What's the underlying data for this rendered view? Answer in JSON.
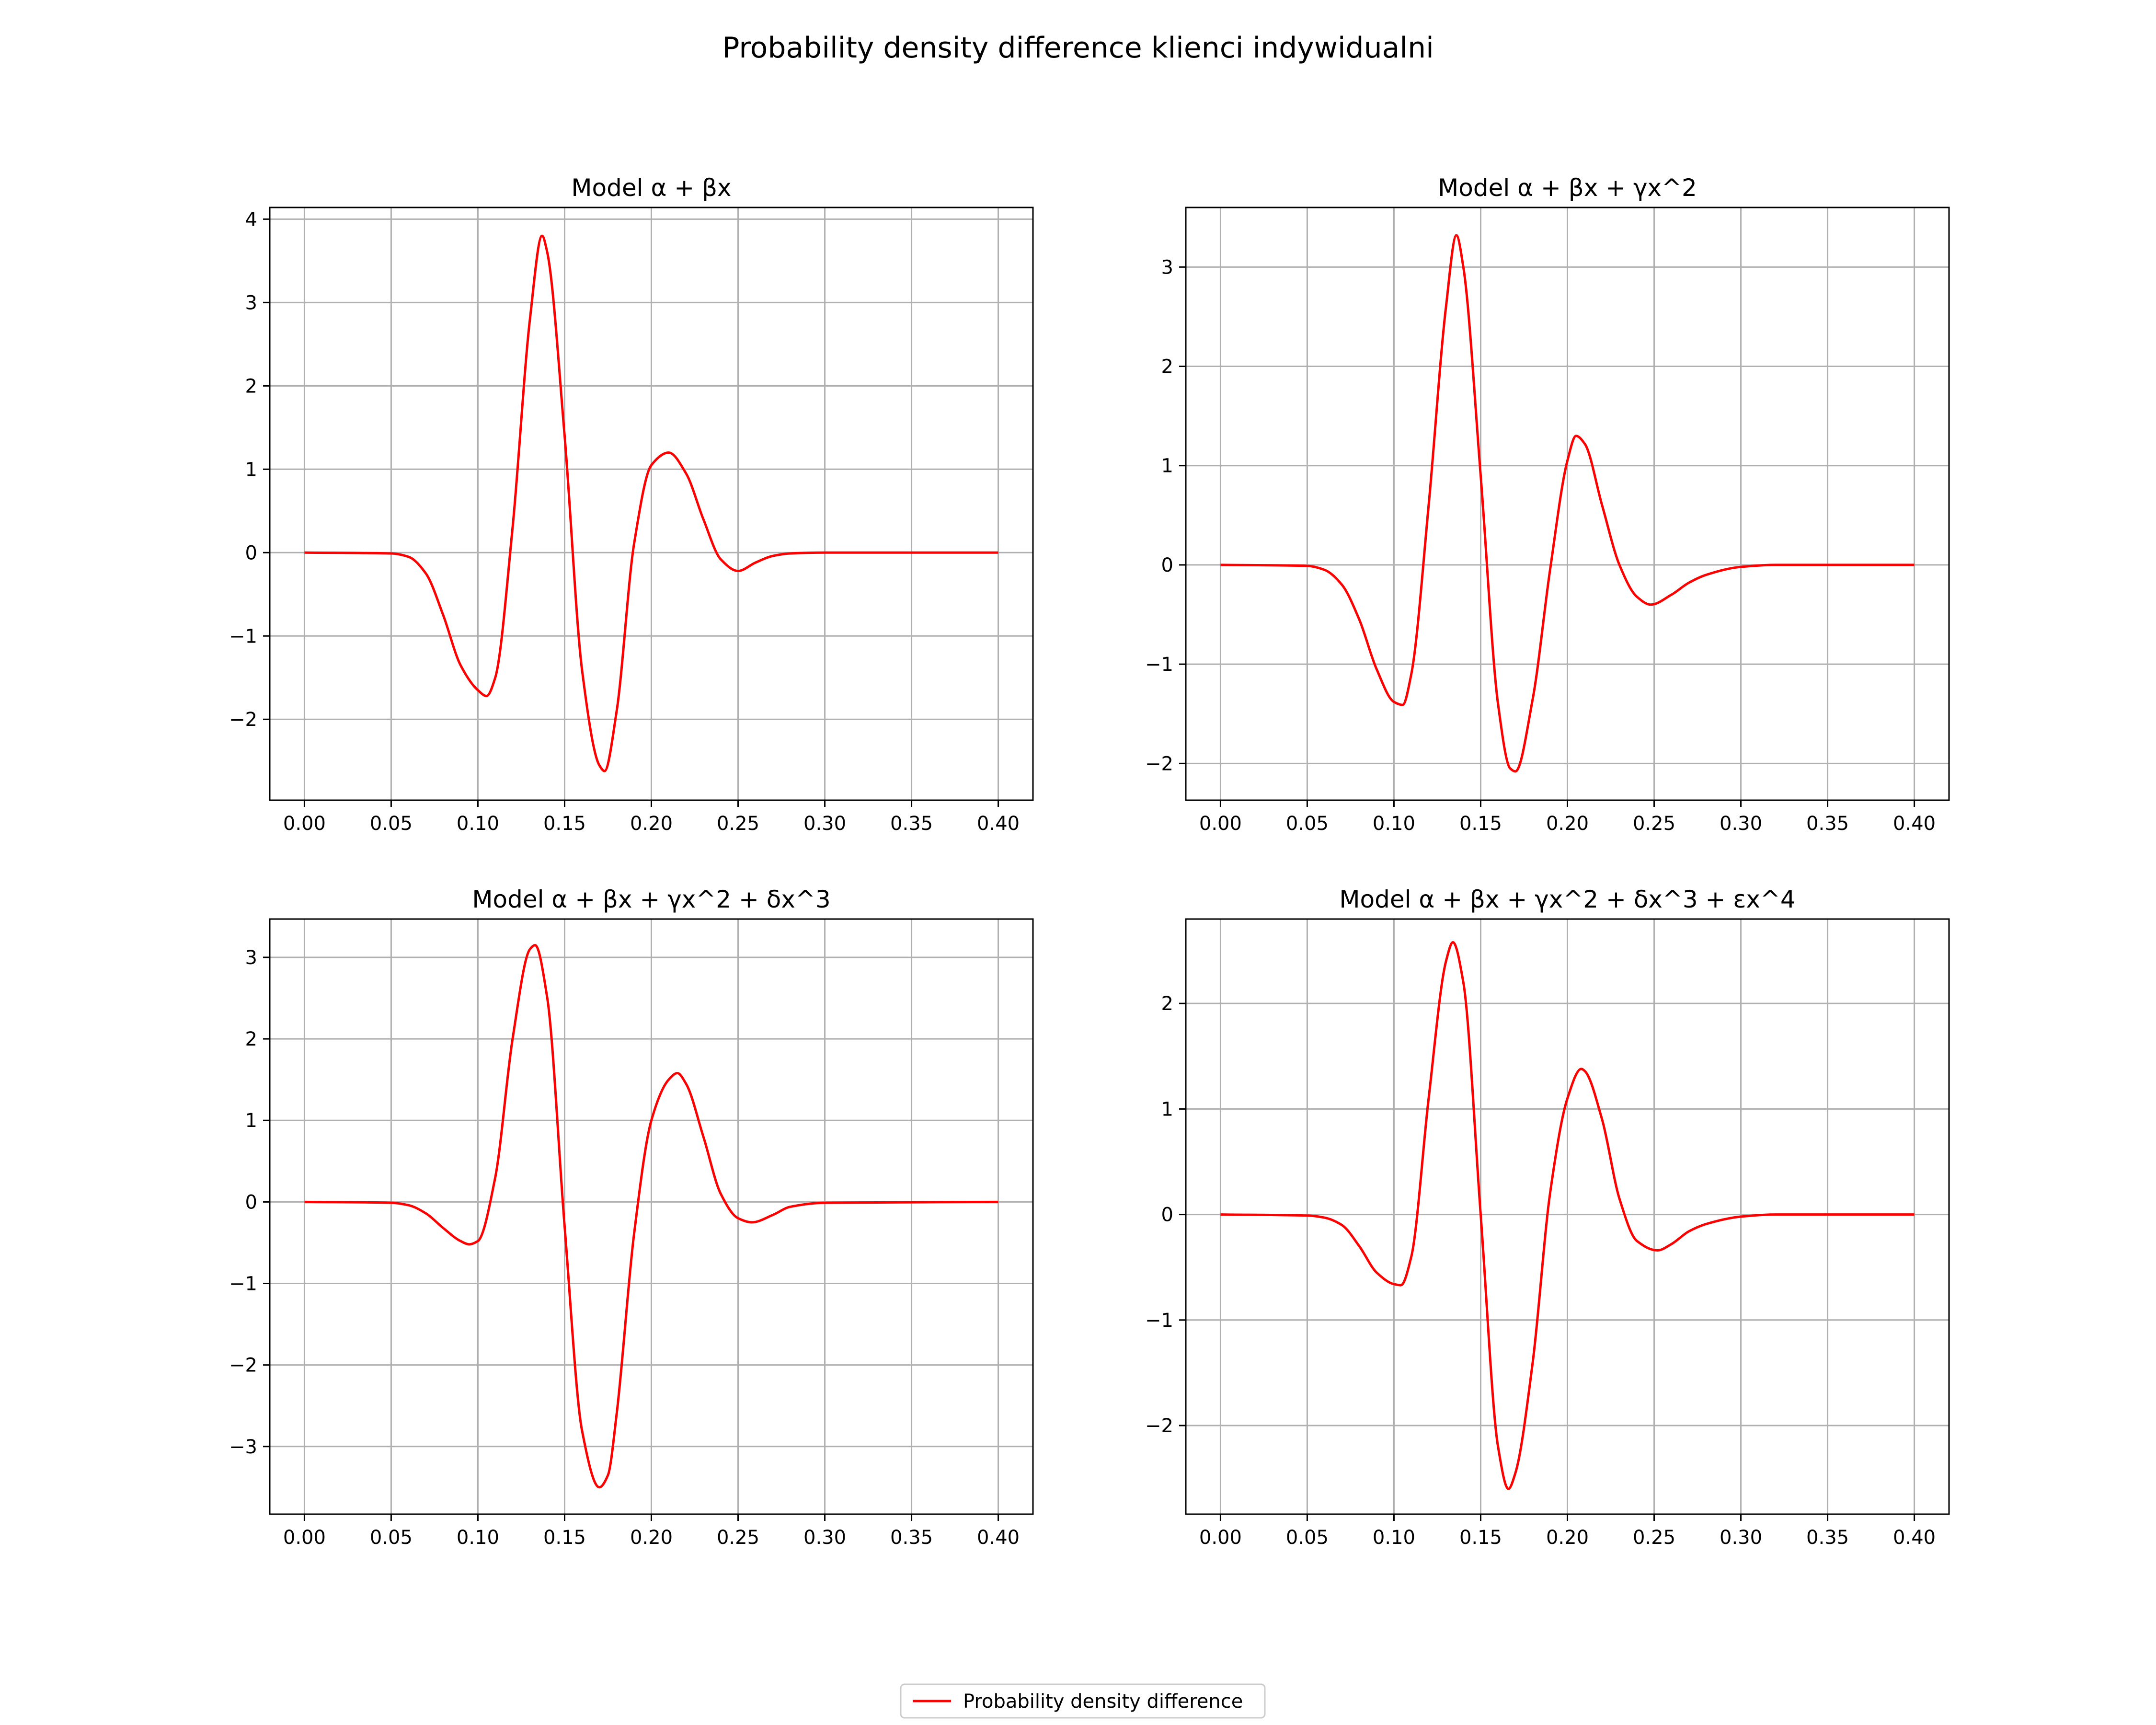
{
  "suptitle": "Probability density difference klienci indywidualni",
  "legend": {
    "label": "Probability density difference",
    "position": "lower center"
  },
  "colors": {
    "line": "#ff0000",
    "grid": "#b0b0b0",
    "axes": "#000000",
    "background": "#ffffff"
  },
  "chart_data": [
    {
      "type": "line",
      "title": "Model α + βx",
      "xlabel": "",
      "ylabel": "",
      "grid": true,
      "xlim": [
        -0.02,
        0.42
      ],
      "ylim": [
        -2.97,
        4.14
      ],
      "xticks": [
        0,
        0.05,
        0.1,
        0.15,
        0.2,
        0.25,
        0.3,
        0.35,
        0.4
      ],
      "xtick_labels": [
        "0.00",
        "0.05",
        "0.10",
        "0.15",
        "0.20",
        "0.25",
        "0.30",
        "0.35",
        "0.40"
      ],
      "yticks": [
        -2,
        -1,
        0,
        1,
        2,
        3,
        4
      ],
      "ytick_labels": [
        "−2",
        "−1",
        "0",
        "1",
        "2",
        "3",
        "4"
      ],
      "series": [
        {
          "name": "Probability density difference",
          "x": [
            0,
            0.05,
            0.06,
            0.07,
            0.08,
            0.09,
            0.1,
            0.105,
            0.11,
            0.12,
            0.13,
            0.137,
            0.14,
            0.15,
            0.16,
            0.17,
            0.173,
            0.18,
            0.19,
            0.2,
            0.21,
            0.22,
            0.23,
            0.24,
            0.25,
            0.26,
            0.27,
            0.28,
            0.3,
            0.4
          ],
          "y": [
            0,
            -0.01,
            -0.05,
            -0.25,
            -0.75,
            -1.35,
            -1.65,
            -1.72,
            -1.5,
            0.3,
            2.8,
            3.8,
            3.6,
            1.4,
            -1.4,
            -2.55,
            -2.62,
            -1.9,
            0.1,
            1.05,
            1.2,
            0.95,
            0.4,
            -0.08,
            -0.22,
            -0.12,
            -0.04,
            -0.01,
            0,
            0
          ]
        }
      ]
    },
    {
      "type": "line",
      "title": "Model α + βx + γx^2",
      "xlabel": "",
      "ylabel": "",
      "grid": true,
      "xlim": [
        -0.02,
        0.42
      ],
      "ylim": [
        -2.37,
        3.6
      ],
      "xticks": [
        0,
        0.05,
        0.1,
        0.15,
        0.2,
        0.25,
        0.3,
        0.35,
        0.4
      ],
      "xtick_labels": [
        "0.00",
        "0.05",
        "0.10",
        "0.15",
        "0.20",
        "0.25",
        "0.30",
        "0.35",
        "0.40"
      ],
      "yticks": [
        -2,
        -1,
        0,
        1,
        2,
        3
      ],
      "ytick_labels": [
        "−2",
        "−1",
        "0",
        "1",
        "2",
        "3"
      ],
      "series": [
        {
          "name": "Probability density difference",
          "x": [
            0,
            0.05,
            0.06,
            0.07,
            0.08,
            0.09,
            0.1,
            0.105,
            0.11,
            0.12,
            0.13,
            0.136,
            0.14,
            0.15,
            0.16,
            0.167,
            0.17,
            0.18,
            0.19,
            0.2,
            0.205,
            0.21,
            0.22,
            0.23,
            0.24,
            0.248,
            0.26,
            0.27,
            0.28,
            0.3,
            0.32,
            0.4
          ],
          "y": [
            0,
            -0.01,
            -0.05,
            -0.2,
            -0.55,
            -1.05,
            -1.38,
            -1.41,
            -1.1,
            0.6,
            2.6,
            3.32,
            3.0,
            0.9,
            -1.4,
            -2.05,
            -2.08,
            -1.35,
            -0.05,
            1.05,
            1.3,
            1.22,
            0.6,
            0.0,
            -0.32,
            -0.4,
            -0.3,
            -0.18,
            -0.1,
            -0.02,
            0,
            0
          ]
        }
      ]
    },
    {
      "type": "line",
      "title": "Model α + βx + γx^2 + δx^3",
      "xlabel": "",
      "ylabel": "",
      "grid": true,
      "xlim": [
        -0.02,
        0.42
      ],
      "ylim": [
        -3.83,
        3.47
      ],
      "xticks": [
        0,
        0.05,
        0.1,
        0.15,
        0.2,
        0.25,
        0.3,
        0.35,
        0.4
      ],
      "xtick_labels": [
        "0.00",
        "0.05",
        "0.10",
        "0.15",
        "0.20",
        "0.25",
        "0.30",
        "0.35",
        "0.40"
      ],
      "yticks": [
        -3,
        -2,
        -1,
        0,
        1,
        2,
        3
      ],
      "ytick_labels": [
        "−3",
        "−2",
        "−1",
        "0",
        "1",
        "2",
        "3"
      ],
      "series": [
        {
          "name": "Probability density difference",
          "x": [
            0,
            0.05,
            0.06,
            0.07,
            0.08,
            0.09,
            0.095,
            0.1,
            0.11,
            0.12,
            0.13,
            0.133,
            0.14,
            0.15,
            0.16,
            0.17,
            0.175,
            0.18,
            0.19,
            0.2,
            0.21,
            0.215,
            0.22,
            0.23,
            0.24,
            0.25,
            0.258,
            0.27,
            0.28,
            0.3,
            0.4
          ],
          "y": [
            0,
            -0.01,
            -0.04,
            -0.14,
            -0.32,
            -0.48,
            -0.52,
            -0.48,
            0.3,
            2.0,
            3.1,
            3.15,
            2.5,
            -0.3,
            -2.8,
            -3.5,
            -3.35,
            -2.6,
            -0.4,
            1.0,
            1.5,
            1.58,
            1.45,
            0.8,
            0.1,
            -0.2,
            -0.25,
            -0.16,
            -0.06,
            -0.01,
            0
          ]
        }
      ]
    },
    {
      "type": "line",
      "title": "Model α + βx + γx^2 + δx^3 + εx^4",
      "xlabel": "",
      "ylabel": "",
      "grid": true,
      "xlim": [
        -0.02,
        0.42
      ],
      "ylim": [
        -2.84,
        2.8
      ],
      "xticks": [
        0,
        0.05,
        0.1,
        0.15,
        0.2,
        0.25,
        0.3,
        0.35,
        0.4
      ],
      "xtick_labels": [
        "0.00",
        "0.05",
        "0.10",
        "0.15",
        "0.20",
        "0.25",
        "0.30",
        "0.35",
        "0.40"
      ],
      "yticks": [
        -2,
        -1,
        0,
        1,
        2
      ],
      "ytick_labels": [
        "−2",
        "−1",
        "0",
        "1",
        "2"
      ],
      "series": [
        {
          "name": "Probability density difference",
          "x": [
            0,
            0.05,
            0.06,
            0.07,
            0.08,
            0.09,
            0.1,
            0.104,
            0.11,
            0.12,
            0.13,
            0.134,
            0.14,
            0.15,
            0.16,
            0.166,
            0.17,
            0.18,
            0.19,
            0.2,
            0.208,
            0.21,
            0.22,
            0.23,
            0.24,
            0.252,
            0.26,
            0.27,
            0.28,
            0.3,
            0.32,
            0.4
          ],
          "y": [
            0,
            -0.01,
            -0.03,
            -0.1,
            -0.3,
            -0.55,
            -0.66,
            -0.67,
            -0.4,
            1.1,
            2.4,
            2.58,
            2.2,
            0.0,
            -2.2,
            -2.6,
            -2.45,
            -1.4,
            0.2,
            1.1,
            1.38,
            1.36,
            0.9,
            0.15,
            -0.25,
            -0.34,
            -0.28,
            -0.16,
            -0.09,
            -0.02,
            0,
            0
          ]
        }
      ]
    }
  ]
}
